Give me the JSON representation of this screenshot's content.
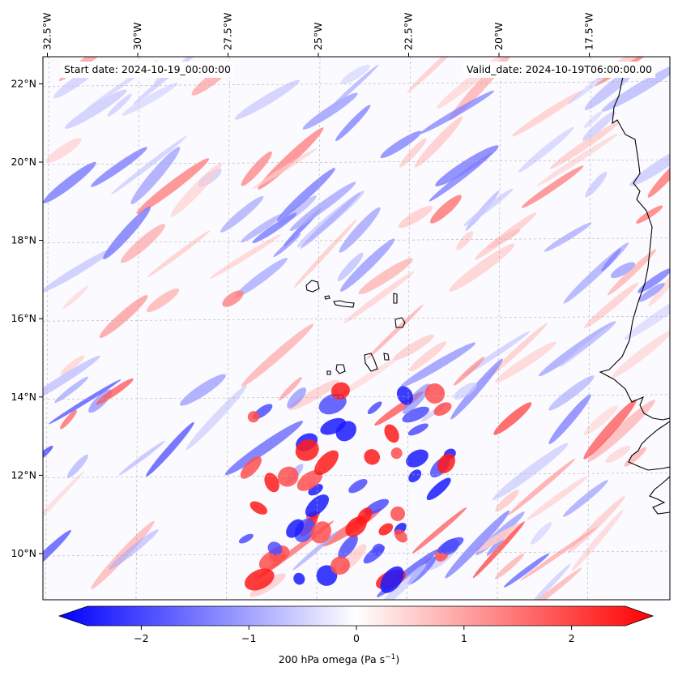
{
  "map": {
    "start_label": "Start date: 2024-10-19_00:00:00",
    "valid_label": "Valid_date: 2024-10-19T06:00:00.00",
    "lon_ticks": [
      {
        "label": "32.5°W",
        "lon": -32.5
      },
      {
        "label": "30°W",
        "lon": -30
      },
      {
        "label": "27.5°W",
        "lon": -27.5
      },
      {
        "label": "25°W",
        "lon": -25
      },
      {
        "label": "22.5°W",
        "lon": -22.5
      },
      {
        "label": "20°W",
        "lon": -20
      },
      {
        "label": "17.5°W",
        "lon": -17.5
      }
    ],
    "lat_ticks": [
      {
        "label": "22°N",
        "lat": 22
      },
      {
        "label": "20°N",
        "lat": 20
      },
      {
        "label": "18°N",
        "lat": 18
      },
      {
        "label": "16°N",
        "lat": 16
      },
      {
        "label": "14°N",
        "lat": 14
      },
      {
        "label": "12°N",
        "lat": 12
      },
      {
        "label": "10°N",
        "lat": 10
      }
    ],
    "colormap": "bwr",
    "colors": {
      "negative": "#0000ff",
      "zero": "#ffffff",
      "positive": "#ff0000",
      "coast": "#000000",
      "grid": "#b0b0b0"
    }
  },
  "colorbar": {
    "label_main": "200 hPa omega (Pa s",
    "label_sup": "−1",
    "label_end": ")",
    "range": [
      -2.5,
      2.5
    ],
    "extend": "both",
    "ticks": [
      {
        "label": "−2",
        "value": -2
      },
      {
        "label": "−1",
        "value": -1
      },
      {
        "label": "0",
        "value": 0
      },
      {
        "label": "1",
        "value": 1
      },
      {
        "label": "2",
        "value": 2
      }
    ]
  }
}
